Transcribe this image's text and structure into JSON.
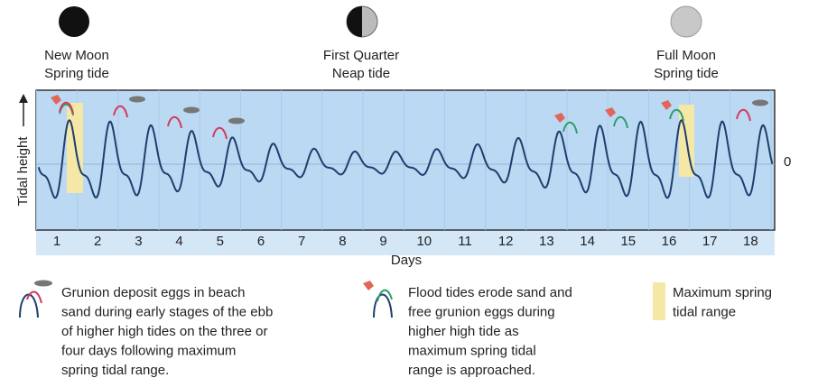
{
  "phases": [
    {
      "moon": "New Moon",
      "tide": "Spring tide"
    },
    {
      "moon": "First Quarter",
      "tide": "Neap tide"
    },
    {
      "moon": "Full Moon",
      "tide": "Spring tide"
    }
  ],
  "y_axis": {
    "label": "Tidal height",
    "zero_label": "0"
  },
  "x_axis": {
    "label": "Days",
    "ticks": [
      1,
      2,
      3,
      4,
      5,
      6,
      7,
      8,
      9,
      10,
      11,
      12,
      13,
      14,
      15,
      16,
      17,
      18
    ]
  },
  "legend": [
    {
      "lines": [
        "Grunion deposit eggs in beach",
        "sand during early stages of the ebb",
        "of higher high tides on the three or",
        "four days following maximum",
        "spring tidal range."
      ]
    },
    {
      "lines": [
        "Flood tides erode sand and",
        "free grunion eggs during",
        "higher high tide as",
        "maximum spring tidal",
        "range is approached."
      ]
    },
    {
      "lines": [
        "Maximum spring",
        "tidal range"
      ]
    }
  ]
}
